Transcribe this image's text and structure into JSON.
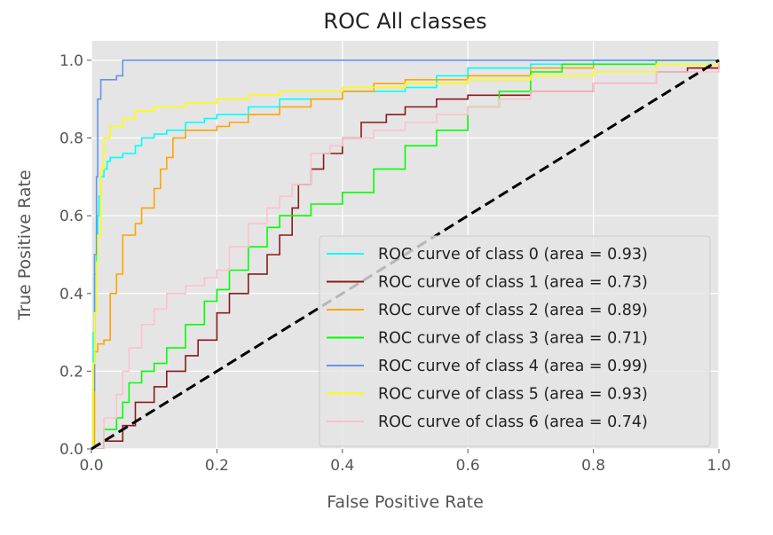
{
  "chart_data": {
    "type": "line",
    "title": "ROC All classes",
    "xlabel": "False Positive Rate",
    "ylabel": "True Positive Rate",
    "xlim": [
      0,
      1
    ],
    "ylim": [
      0,
      1.05
    ],
    "grid": true,
    "legend_position": "lower-right",
    "x_ticks": [
      0.0,
      0.2,
      0.4,
      0.6,
      0.8,
      1.0
    ],
    "x_tick_labels": [
      "0.0",
      "0.2",
      "0.4",
      "0.6",
      "0.8",
      "1.0"
    ],
    "y_ticks": [
      0.0,
      0.2,
      0.4,
      0.6,
      0.8,
      1.0
    ],
    "y_tick_labels": [
      "0.0",
      "0.2",
      "0.4",
      "0.6",
      "0.8",
      "1.0"
    ],
    "diagonal": {
      "x": [
        0,
        1
      ],
      "y": [
        0,
        1
      ],
      "color": "#000000",
      "dashed": true
    },
    "series": [
      {
        "name": "ROC curve of class 0 (area = 0.93)",
        "color": "#00ffff",
        "points": [
          [
            0,
            0
          ],
          [
            0.003,
            0.3
          ],
          [
            0.005,
            0.45
          ],
          [
            0.008,
            0.55
          ],
          [
            0.01,
            0.6
          ],
          [
            0.012,
            0.65
          ],
          [
            0.015,
            0.7
          ],
          [
            0.02,
            0.72
          ],
          [
            0.025,
            0.74
          ],
          [
            0.03,
            0.75
          ],
          [
            0.05,
            0.76
          ],
          [
            0.07,
            0.78
          ],
          [
            0.08,
            0.8
          ],
          [
            0.1,
            0.81
          ],
          [
            0.12,
            0.82
          ],
          [
            0.15,
            0.84
          ],
          [
            0.18,
            0.85
          ],
          [
            0.2,
            0.86
          ],
          [
            0.25,
            0.88
          ],
          [
            0.3,
            0.9
          ],
          [
            0.4,
            0.92
          ],
          [
            0.5,
            0.93
          ],
          [
            0.55,
            0.96
          ],
          [
            0.6,
            0.98
          ],
          [
            0.7,
            0.99
          ],
          [
            0.8,
            1.0
          ],
          [
            1,
            1
          ]
        ]
      },
      {
        "name": "ROC curve of class 1 (area = 0.73)",
        "color": "#8b1a1a",
        "points": [
          [
            0,
            0
          ],
          [
            0.02,
            0.02
          ],
          [
            0.05,
            0.06
          ],
          [
            0.07,
            0.12
          ],
          [
            0.1,
            0.16
          ],
          [
            0.12,
            0.2
          ],
          [
            0.15,
            0.24
          ],
          [
            0.17,
            0.28
          ],
          [
            0.2,
            0.35
          ],
          [
            0.22,
            0.4
          ],
          [
            0.25,
            0.45
          ],
          [
            0.28,
            0.5
          ],
          [
            0.3,
            0.55
          ],
          [
            0.32,
            0.62
          ],
          [
            0.33,
            0.68
          ],
          [
            0.35,
            0.72
          ],
          [
            0.37,
            0.76
          ],
          [
            0.4,
            0.8
          ],
          [
            0.43,
            0.84
          ],
          [
            0.47,
            0.86
          ],
          [
            0.5,
            0.88
          ],
          [
            0.55,
            0.9
          ],
          [
            0.6,
            0.91
          ],
          [
            0.7,
            0.92
          ],
          [
            0.8,
            0.94
          ],
          [
            0.9,
            0.97
          ],
          [
            0.95,
            0.98
          ],
          [
            1,
            1
          ]
        ]
      },
      {
        "name": "ROC curve of class 2 (area = 0.89)",
        "color": "#ffa500",
        "points": [
          [
            0,
            0
          ],
          [
            0.005,
            0.25
          ],
          [
            0.01,
            0.27
          ],
          [
            0.02,
            0.28
          ],
          [
            0.03,
            0.4
          ],
          [
            0.04,
            0.45
          ],
          [
            0.05,
            0.55
          ],
          [
            0.07,
            0.58
          ],
          [
            0.08,
            0.62
          ],
          [
            0.1,
            0.67
          ],
          [
            0.11,
            0.72
          ],
          [
            0.12,
            0.75
          ],
          [
            0.13,
            0.8
          ],
          [
            0.15,
            0.82
          ],
          [
            0.2,
            0.83
          ],
          [
            0.22,
            0.84
          ],
          [
            0.25,
            0.86
          ],
          [
            0.3,
            0.88
          ],
          [
            0.35,
            0.9
          ],
          [
            0.4,
            0.92
          ],
          [
            0.45,
            0.94
          ],
          [
            0.5,
            0.95
          ],
          [
            0.6,
            0.96
          ],
          [
            0.7,
            0.98
          ],
          [
            0.8,
            0.99
          ],
          [
            0.9,
            1.0
          ],
          [
            1,
            1
          ]
        ]
      },
      {
        "name": "ROC curve of class 3 (area = 0.71)",
        "color": "#00ff00",
        "points": [
          [
            0,
            0
          ],
          [
            0.02,
            0.05
          ],
          [
            0.04,
            0.08
          ],
          [
            0.05,
            0.12
          ],
          [
            0.06,
            0.17
          ],
          [
            0.08,
            0.2
          ],
          [
            0.1,
            0.22
          ],
          [
            0.12,
            0.26
          ],
          [
            0.15,
            0.32
          ],
          [
            0.18,
            0.38
          ],
          [
            0.2,
            0.41
          ],
          [
            0.22,
            0.46
          ],
          [
            0.25,
            0.52
          ],
          [
            0.28,
            0.57
          ],
          [
            0.3,
            0.6
          ],
          [
            0.35,
            0.63
          ],
          [
            0.4,
            0.66
          ],
          [
            0.45,
            0.72
          ],
          [
            0.5,
            0.78
          ],
          [
            0.55,
            0.82
          ],
          [
            0.6,
            0.88
          ],
          [
            0.65,
            0.92
          ],
          [
            0.7,
            0.97
          ],
          [
            0.75,
            0.99
          ],
          [
            0.8,
            0.99
          ],
          [
            0.9,
            1.0
          ],
          [
            1,
            1
          ]
        ]
      },
      {
        "name": "ROC curve of class 4 (area = 0.99)",
        "color": "#6495ed",
        "points": [
          [
            0,
            0
          ],
          [
            0.003,
            0.15
          ],
          [
            0.005,
            0.5
          ],
          [
            0.008,
            0.7
          ],
          [
            0.01,
            0.9
          ],
          [
            0.015,
            0.95
          ],
          [
            0.03,
            0.95
          ],
          [
            0.04,
            0.96
          ],
          [
            0.05,
            1.0
          ],
          [
            1,
            1
          ]
        ]
      },
      {
        "name": "ROC curve of class 5 (area = 0.93)",
        "color": "#ffff00",
        "points": [
          [
            0,
            0
          ],
          [
            0.003,
            0.22
          ],
          [
            0.005,
            0.35
          ],
          [
            0.008,
            0.48
          ],
          [
            0.01,
            0.55
          ],
          [
            0.015,
            0.72
          ],
          [
            0.02,
            0.8
          ],
          [
            0.03,
            0.83
          ],
          [
            0.05,
            0.85
          ],
          [
            0.07,
            0.87
          ],
          [
            0.1,
            0.88
          ],
          [
            0.15,
            0.89
          ],
          [
            0.2,
            0.9
          ],
          [
            0.25,
            0.91
          ],
          [
            0.3,
            0.92
          ],
          [
            0.4,
            0.93
          ],
          [
            0.5,
            0.94
          ],
          [
            0.6,
            0.95
          ],
          [
            0.7,
            0.96
          ],
          [
            0.8,
            0.97
          ],
          [
            0.9,
            0.99
          ],
          [
            1,
            1
          ]
        ]
      },
      {
        "name": "ROC curve of class 6 (area = 0.74)",
        "color": "#ffc0cb",
        "points": [
          [
            0,
            0
          ],
          [
            0.02,
            0.08
          ],
          [
            0.04,
            0.14
          ],
          [
            0.05,
            0.2
          ],
          [
            0.06,
            0.26
          ],
          [
            0.08,
            0.32
          ],
          [
            0.1,
            0.36
          ],
          [
            0.12,
            0.4
          ],
          [
            0.15,
            0.42
          ],
          [
            0.18,
            0.44
          ],
          [
            0.2,
            0.46
          ],
          [
            0.22,
            0.52
          ],
          [
            0.25,
            0.58
          ],
          [
            0.28,
            0.62
          ],
          [
            0.3,
            0.65
          ],
          [
            0.32,
            0.68
          ],
          [
            0.35,
            0.76
          ],
          [
            0.38,
            0.78
          ],
          [
            0.4,
            0.8
          ],
          [
            0.45,
            0.82
          ],
          [
            0.5,
            0.84
          ],
          [
            0.55,
            0.86
          ],
          [
            0.6,
            0.88
          ],
          [
            0.65,
            0.9
          ],
          [
            0.7,
            0.92
          ],
          [
            0.8,
            0.94
          ],
          [
            0.9,
            0.97
          ],
          [
            1,
            1
          ]
        ]
      }
    ]
  }
}
